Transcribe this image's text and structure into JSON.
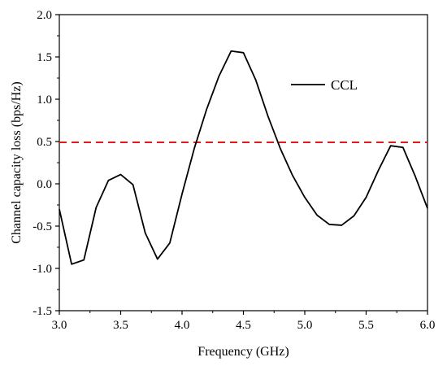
{
  "chart_data": {
    "type": "line",
    "title": "",
    "xlabel": "Frequency (GHz)",
    "ylabel": "Channel capacity loss (bps/Hz)",
    "xlim": [
      3.0,
      6.0
    ],
    "ylim": [
      -1.5,
      2.0
    ],
    "x_ticks": [
      "3.0",
      "3.5",
      "4.0",
      "4.5",
      "5.0",
      "5.5",
      "6.0"
    ],
    "y_ticks": [
      "-1.5",
      "-1.0",
      "-0.5",
      "0.0",
      "0.5",
      "1.0",
      "1.5",
      "2.0"
    ],
    "grid": false,
    "legend_position": "top-right",
    "series": [
      {
        "name": "CCL",
        "color": "#000000",
        "style": "solid",
        "x": [
          3.0,
          3.1,
          3.2,
          3.3,
          3.4,
          3.5,
          3.6,
          3.7,
          3.8,
          3.9,
          4.0,
          4.1,
          4.2,
          4.3,
          4.4,
          4.5,
          4.6,
          4.7,
          4.8,
          4.9,
          5.0,
          5.1,
          5.2,
          5.3,
          5.4,
          5.5,
          5.6,
          5.7,
          5.8,
          5.9,
          6.0
        ],
        "y": [
          -0.3,
          -0.95,
          -0.9,
          -0.28,
          0.04,
          0.11,
          -0.01,
          -0.58,
          -0.89,
          -0.7,
          -0.12,
          0.42,
          0.88,
          1.27,
          1.57,
          1.55,
          1.23,
          0.8,
          0.42,
          0.1,
          -0.16,
          -0.37,
          -0.48,
          -0.49,
          -0.38,
          -0.16,
          0.16,
          0.45,
          0.43,
          0.09,
          -0.29
        ]
      }
    ],
    "reference_line": {
      "y": 0.49,
      "color": "#e31a1c",
      "style": "dashed"
    }
  }
}
